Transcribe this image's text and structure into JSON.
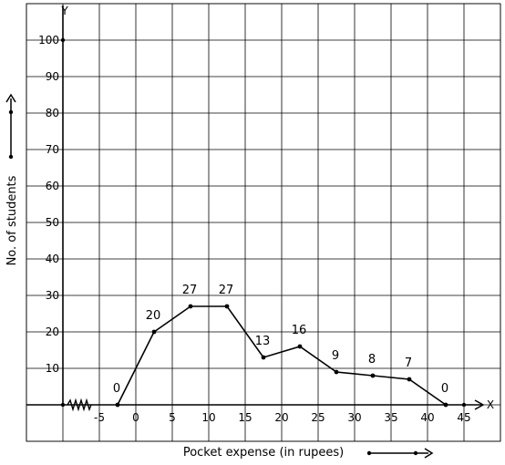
{
  "chart_data": {
    "type": "line",
    "title": "",
    "xlabel": "Pocket expense (in rupees)",
    "ylabel": "No. of students",
    "x_axis_letter": "X",
    "y_axis_letter": "Y",
    "xlim": [
      -10,
      50
    ],
    "ylim": [
      -10,
      110
    ],
    "x_ticks": [
      -5,
      0,
      5,
      10,
      15,
      20,
      25,
      30,
      35,
      40,
      45
    ],
    "x_tick_labels": [
      "-5",
      "0",
      "5",
      "10",
      "15",
      "20",
      "25",
      "30",
      "35",
      "40",
      "45"
    ],
    "y_ticks": [
      10,
      20,
      30,
      40,
      50,
      60,
      70,
      80,
      90,
      100
    ],
    "y_tick_labels": [
      "10",
      "20",
      "30",
      "40",
      "50",
      "60",
      "70",
      "80",
      "90",
      "100"
    ],
    "grid": true,
    "series": [
      {
        "x": [
          -2.5,
          2.5,
          7.5,
          12.5,
          17.5,
          22.5,
          27.5,
          32.5,
          37.5,
          42.5
        ],
        "y": [
          0,
          20,
          27,
          27,
          13,
          16,
          9,
          8,
          7,
          0
        ],
        "labels": [
          "0",
          "20",
          "27",
          "27",
          "13",
          "16",
          "9",
          "8",
          "7",
          "0"
        ]
      }
    ],
    "colors": {
      "line": "#000000",
      "grid": "#000000"
    }
  }
}
